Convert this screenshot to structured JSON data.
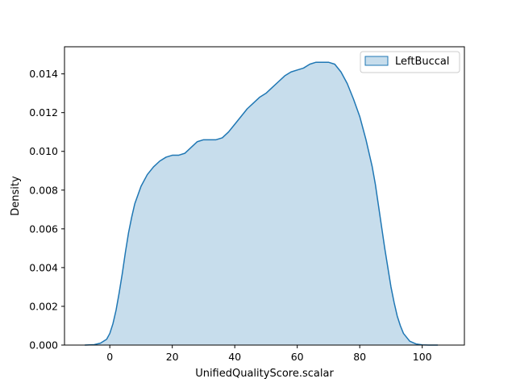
{
  "chart_data": {
    "type": "area",
    "title": "",
    "xlabel": "UnifiedQualityScore.scalar",
    "ylabel": "Density",
    "xlim": [
      -14.5,
      113.5
    ],
    "ylim": [
      0,
      0.0154
    ],
    "xticks": [
      0,
      20,
      40,
      60,
      80,
      100
    ],
    "yticks": [
      0.0,
      0.002,
      0.004,
      0.006,
      0.008,
      0.01,
      0.012,
      0.014
    ],
    "xtick_labels": [
      "0",
      "20",
      "40",
      "60",
      "80",
      "100"
    ],
    "ytick_labels": [
      "0.000",
      "0.002",
      "0.004",
      "0.006",
      "0.008",
      "0.010",
      "0.012",
      "0.014"
    ],
    "grid": false,
    "legend_position": "top-right",
    "colors": {
      "fill": "#1f77b4",
      "fill_opacity": 0.25,
      "line": "#1f77b4"
    },
    "series": [
      {
        "name": "LeftBuccal",
        "x": [
          -8,
          -5,
          -3,
          -1,
          0,
          1,
          2,
          3,
          4,
          5,
          6,
          7,
          8,
          10,
          12,
          14,
          16,
          18,
          20,
          22,
          24,
          26,
          28,
          30,
          32,
          34,
          36,
          38,
          40,
          42,
          44,
          46,
          48,
          50,
          52,
          54,
          56,
          58,
          60,
          62,
          64,
          66,
          68,
          70,
          72,
          74,
          76,
          78,
          80,
          82,
          84,
          85,
          86,
          87,
          88,
          89,
          90,
          91,
          92,
          93,
          94,
          96,
          98,
          100,
          102,
          105
        ],
        "y": [
          0.0,
          2e-05,
          0.0001,
          0.0003,
          0.0006,
          0.0011,
          0.0018,
          0.0027,
          0.0037,
          0.0048,
          0.0058,
          0.0066,
          0.0073,
          0.0082,
          0.0088,
          0.0092,
          0.0095,
          0.0097,
          0.0098,
          0.0098,
          0.0099,
          0.0102,
          0.0105,
          0.0106,
          0.0106,
          0.0106,
          0.0107,
          0.011,
          0.0114,
          0.0118,
          0.0122,
          0.0125,
          0.0128,
          0.013,
          0.0133,
          0.0136,
          0.0139,
          0.0141,
          0.0142,
          0.0143,
          0.0145,
          0.0146,
          0.0146,
          0.0146,
          0.0145,
          0.0141,
          0.0135,
          0.0127,
          0.0118,
          0.0106,
          0.0092,
          0.0083,
          0.0072,
          0.0061,
          0.005,
          0.004,
          0.003,
          0.0022,
          0.0015,
          0.001,
          0.0006,
          0.0002,
          6e-05,
          1e-05,
          0.0,
          0.0
        ]
      }
    ]
  }
}
